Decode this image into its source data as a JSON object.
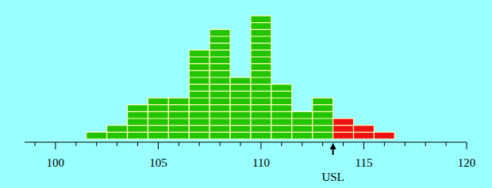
{
  "chart_data": {
    "type": "histogram",
    "bins": [
      101.5,
      102.5,
      103.5,
      104.5,
      105.5,
      106.5,
      107.5,
      108.5,
      109.5,
      110.5,
      111.5,
      112.5,
      113.5,
      114.5,
      115.5,
      116.5
    ],
    "values": [
      1,
      2,
      5,
      6,
      6,
      13,
      16,
      9,
      18,
      8,
      4,
      6,
      3,
      2,
      1
    ],
    "colors": [
      "#22c400",
      "#22c400",
      "#22c400",
      "#22c400",
      "#22c400",
      "#22c400",
      "#22c400",
      "#22c400",
      "#22c400",
      "#22c400",
      "#22c400",
      "#22c400",
      "#ee1111",
      "#ee1111",
      "#ee1111"
    ],
    "xlim": [
      98.5,
      120
    ],
    "xticks": [
      100,
      105,
      110,
      115,
      120
    ],
    "minor_xticks": [
      99,
      101,
      102,
      103,
      104,
      106,
      107,
      108,
      109,
      111,
      112,
      113,
      114,
      116,
      117,
      118,
      119
    ],
    "ylim": [
      0,
      18
    ],
    "tick_labels": "x",
    "grid": false,
    "annotations": [
      {
        "x": 113.5,
        "text": "USL"
      }
    ]
  }
}
